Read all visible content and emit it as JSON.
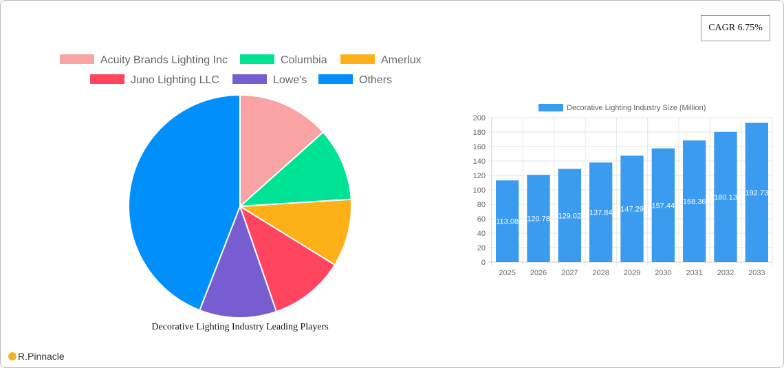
{
  "cagr_label": "CAGR 6.75%",
  "logo_text": "R.Pinnacle",
  "chart_data": [
    {
      "type": "pie",
      "title": "Decorative Lighting Industry Leading Players",
      "legend_position": "top",
      "categories": [
        "Acuity Brands Lighting Inc",
        "Columbia",
        "Amerlux",
        "Juno Lighting LLC",
        "Lowe's",
        "Others"
      ],
      "values": [
        13.4,
        10.6,
        9.8,
        10.9,
        11.2,
        44.1
      ],
      "colors": [
        "#f9a3a4",
        "#00e396",
        "#feb019",
        "#ff4560",
        "#775dd0",
        "#008ffb"
      ]
    },
    {
      "type": "bar",
      "legend_position": "top",
      "grid": true,
      "series": [
        {
          "name": "Decorative Lighting Industry Size (Million)",
          "color": "#3a9bef",
          "values": [
            113.08,
            120.78,
            129.02,
            137.84,
            147.29,
            157.44,
            168.36,
            180.13,
            192.73
          ]
        }
      ],
      "categories": [
        "2025",
        "2026",
        "2027",
        "2028",
        "2029",
        "2030",
        "2031",
        "2032",
        "2033"
      ],
      "ylim": [
        0,
        200
      ],
      "yticks": [
        "0",
        "20",
        "40",
        "60",
        "80",
        "100",
        "120",
        "140",
        "160",
        "180",
        "200"
      ]
    }
  ]
}
